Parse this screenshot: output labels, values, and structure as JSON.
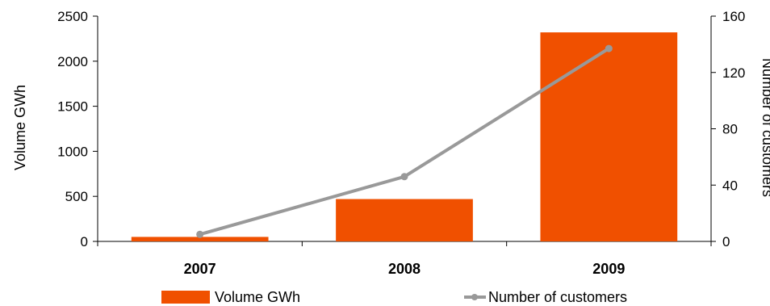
{
  "chart_data": {
    "type": "bar",
    "categories": [
      "2007",
      "2008",
      "2009"
    ],
    "series": [
      {
        "name": "Volume GWh",
        "type": "bar",
        "axis": "left",
        "color": "#F05000",
        "values": [
          50,
          470,
          2320
        ]
      },
      {
        "name": "Number of customers",
        "type": "line",
        "axis": "right",
        "color": "#999999",
        "values": [
          5,
          46,
          137
        ]
      }
    ],
    "ylabel": "Volume GWh",
    "y2label": "Number of customers",
    "ylim": [
      0,
      2500
    ],
    "y2lim": [
      0,
      160
    ],
    "yticks": [
      "0",
      "500",
      "1000",
      "1500",
      "2000",
      "2500"
    ],
    "y2ticks": [
      "0",
      "40",
      "80",
      "120",
      "160"
    ],
    "grid": false,
    "legend_position": "bottom"
  }
}
